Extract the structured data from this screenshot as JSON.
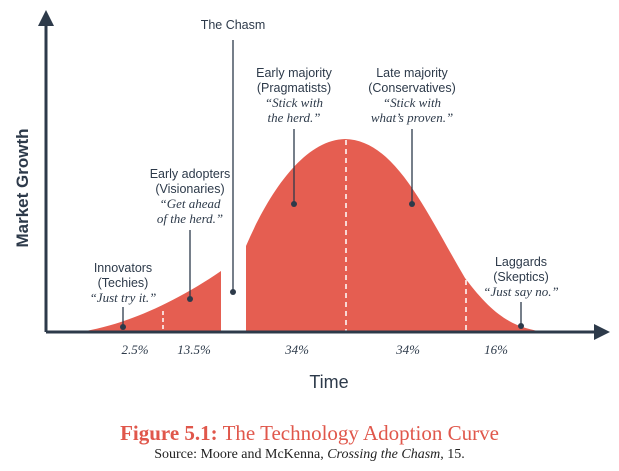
{
  "diagram": {
    "y_axis_label": "Market Growth",
    "x_axis_label": "Time",
    "chasm_label": "The Chasm",
    "segments": [
      {
        "name": "Innovators",
        "subtitle": "(Techies)",
        "quote": "“Just try it.”",
        "percent": "2.5%"
      },
      {
        "name": "Early adopters",
        "subtitle": "(Visionaries)",
        "quote_line1": "“Get ahead",
        "quote_line2": "of the herd.”",
        "percent": "13.5%"
      },
      {
        "name": "Early majority",
        "subtitle": "(Pragmatists)",
        "quote_line1": "“Stick with",
        "quote_line2": "the herd.”",
        "percent": "34%"
      },
      {
        "name": "Late majority",
        "subtitle": "(Conservatives)",
        "quote_line1": "“Stick with",
        "quote_line2": "what’s proven.”",
        "percent": "34%"
      },
      {
        "name": "Laggards",
        "subtitle": "(Skeptics)",
        "quote": "“Just say no.”",
        "percent": "16%"
      }
    ],
    "colors": {
      "curve": "#e55e51",
      "text": "#2d3a4a",
      "axis": "#2d3a4a"
    }
  },
  "caption": {
    "figure_label": "Figure 5.1:",
    "figure_title": "The Technology Adoption Curve",
    "source_prefix": "Source: Moore and McKenna, ",
    "source_title": "Crossing the Chasm",
    "source_suffix": ", 15."
  }
}
